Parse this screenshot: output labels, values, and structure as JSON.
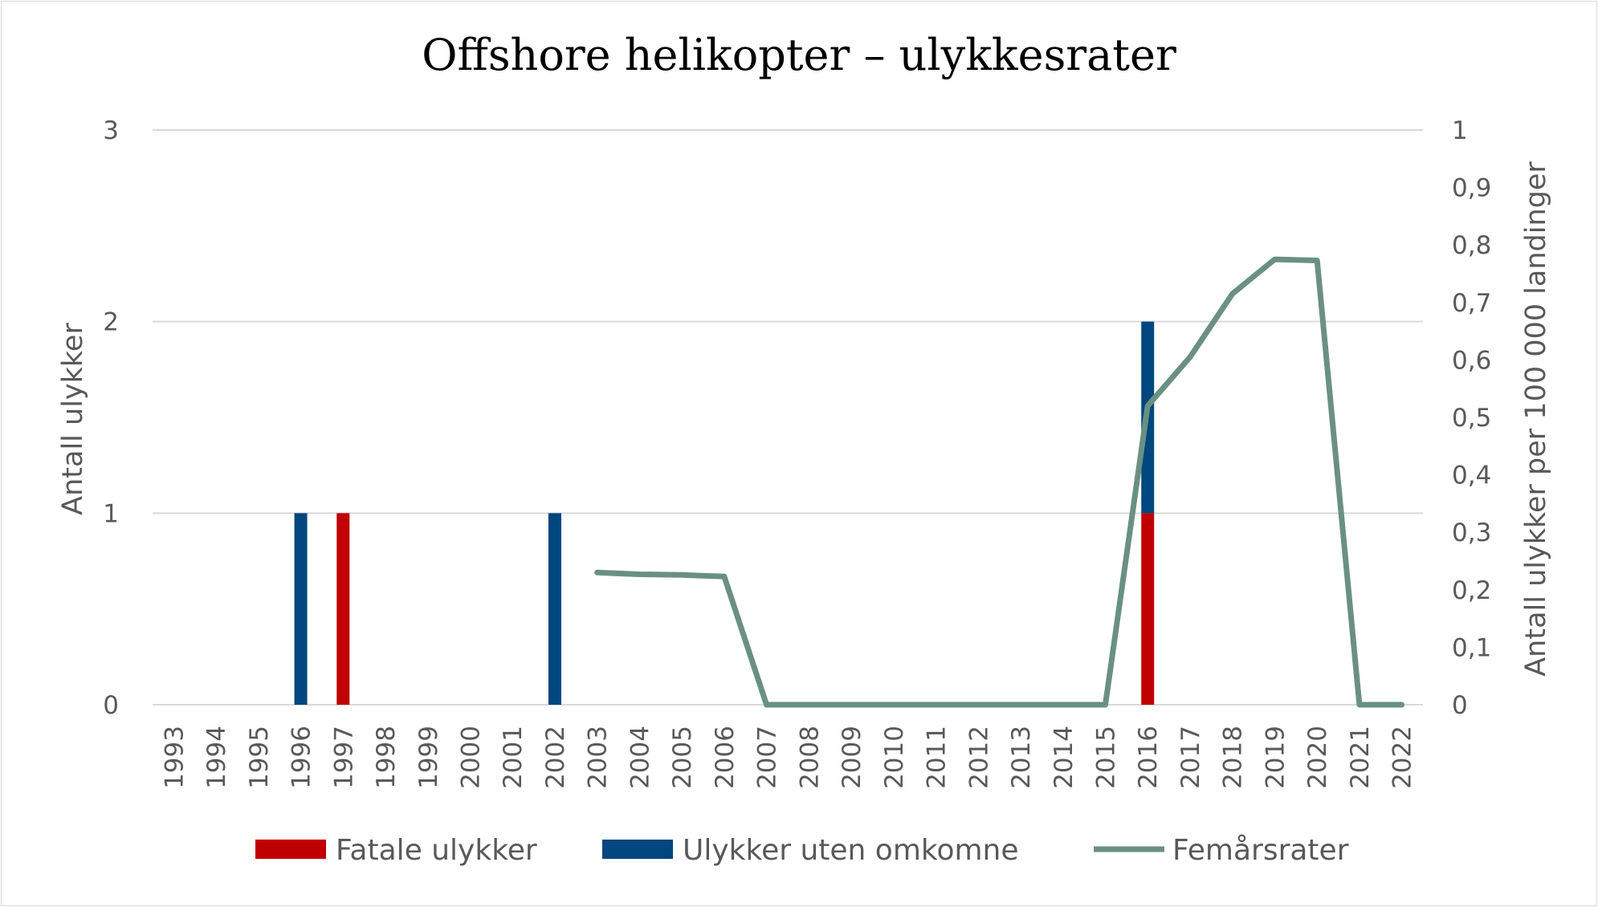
{
  "chart_data": {
    "type": "bar",
    "title": "Offshore helikopter – ulykkesrater",
    "categories": [
      "1993",
      "1994",
      "1995",
      "1996",
      "1997",
      "1998",
      "1999",
      "2000",
      "2001",
      "2002",
      "2003",
      "2004",
      "2005",
      "2006",
      "2007",
      "2008",
      "2009",
      "2010",
      "2011",
      "2012",
      "2013",
      "2014",
      "2015",
      "2016",
      "2017",
      "2018",
      "2019",
      "2020",
      "2021",
      "2022"
    ],
    "ylabel": "Antall ulykker",
    "y2label": "Antall ulykker per 100 000 landinger",
    "ylim": [
      0,
      3
    ],
    "y2lim": [
      0,
      1
    ],
    "yticks": [
      "0",
      "1",
      "2",
      "3"
    ],
    "y2ticks": [
      "0",
      "0,1",
      "0,2",
      "0,3",
      "0,4",
      "0,5",
      "0,6",
      "0,7",
      "0,8",
      "0,9",
      "1"
    ],
    "grid": true,
    "stacked": true,
    "legend_position": "bottom",
    "series": [
      {
        "name": "Fatale ulykker",
        "kind": "bar",
        "axis": "left",
        "color": "#c00000",
        "values": [
          0,
          0,
          0,
          0,
          1,
          0,
          0,
          0,
          0,
          0,
          0,
          0,
          0,
          0,
          0,
          0,
          0,
          0,
          0,
          0,
          0,
          0,
          0,
          1,
          0,
          0,
          0,
          0,
          0,
          0
        ]
      },
      {
        "name": "Ulykker uten omkomne",
        "kind": "bar",
        "axis": "left",
        "color": "#00467f",
        "values": [
          0,
          0,
          0,
          1,
          0,
          0,
          0,
          0,
          0,
          1,
          0,
          0,
          0,
          0,
          0,
          0,
          0,
          0,
          0,
          0,
          0,
          0,
          0,
          1,
          0,
          0,
          0,
          0,
          0,
          0
        ]
      },
      {
        "name": "Femårsrater",
        "kind": "line",
        "axis": "right",
        "color": "#6a9083",
        "values": [
          null,
          null,
          null,
          null,
          null,
          null,
          null,
          null,
          null,
          null,
          0.23,
          0.227,
          0.226,
          0.223,
          0,
          0,
          0,
          0,
          0,
          0,
          0,
          0,
          0,
          0.52,
          0.605,
          0.715,
          0.775,
          0.773,
          0,
          0
        ]
      }
    ]
  }
}
